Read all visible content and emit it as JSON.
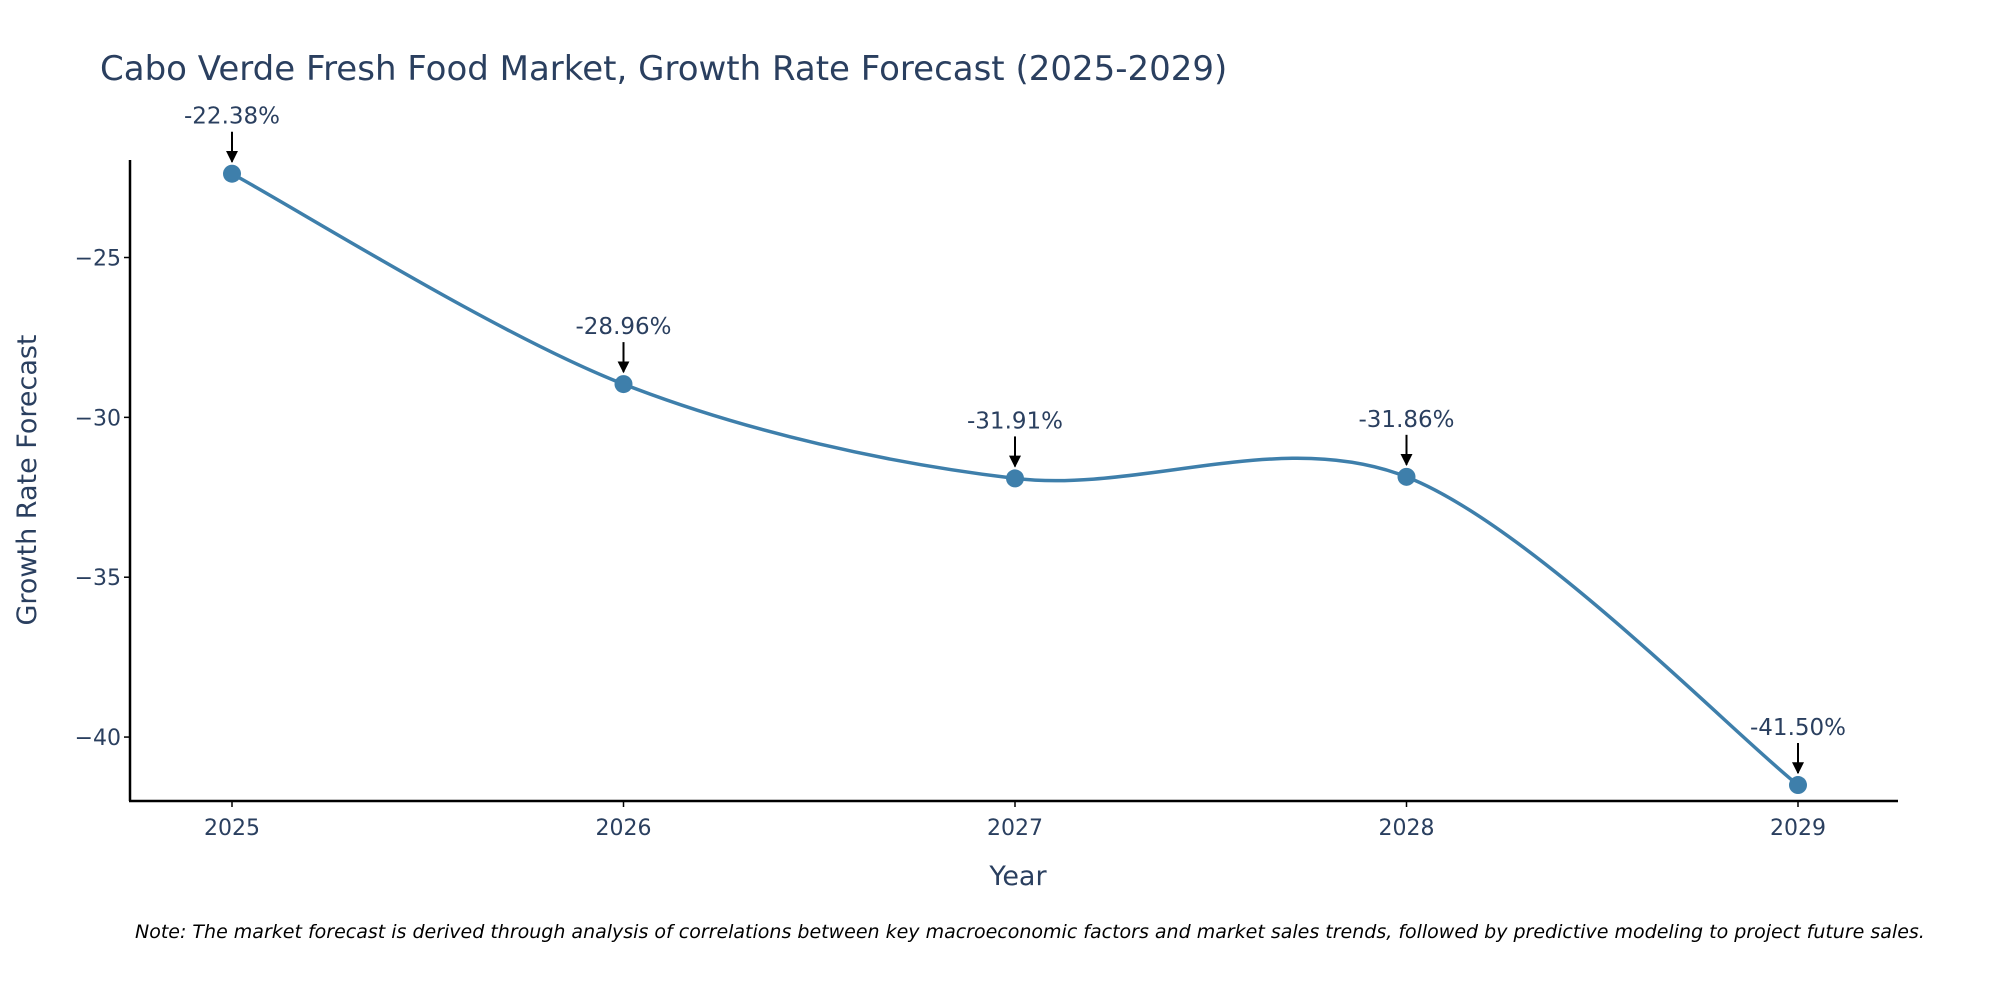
{
  "chart_data": {
    "type": "line",
    "title": "Cabo Verde Fresh Food Market, Growth Rate Forecast (2025-2029)",
    "xlabel": "Year",
    "ylabel": "Growth Rate Forecast",
    "categories": [
      "2025",
      "2026",
      "2027",
      "2028",
      "2029"
    ],
    "series": [
      {
        "name": "Growth Rate Forecast",
        "values": [
          -22.38,
          -28.96,
          -31.91,
          -31.86,
          -41.5
        ]
      }
    ],
    "annotations": [
      "-22.38%",
      "-28.96%",
      "-31.91%",
      "-31.86%",
      "-41.50%"
    ],
    "y_ticks": [
      -25,
      -30,
      -35,
      -40
    ],
    "y_tick_labels": [
      "−25",
      "−30",
      "−35",
      "−40"
    ],
    "ylim": [
      -42.0,
      -21.95
    ],
    "line_shape": "spline",
    "grid": false,
    "colors": {
      "line": "#3e7fab",
      "marker": "#3e7fab",
      "text": "#2a3f5f",
      "axis": "#000000"
    }
  },
  "note": "Note: The market forecast is derived through analysis of correlations between key macroeconomic factors and market sales trends, followed by predictive modeling to project future sales."
}
